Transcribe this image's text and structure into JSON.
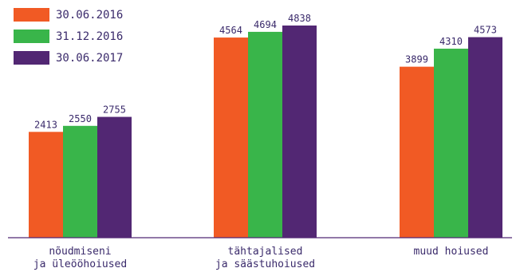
{
  "chart_data": {
    "type": "bar",
    "categories": [
      [
        "nõudmiseni",
        "ja üleööhoiused"
      ],
      [
        "tähtajalised",
        "ja säästuhoiused"
      ],
      [
        "muud hoiused"
      ]
    ],
    "series": [
      {
        "name": "30.06.2016",
        "color": "#f15a24",
        "values": [
          2413,
          4564,
          3899
        ]
      },
      {
        "name": "31.12.2016",
        "color": "#39b54a",
        "values": [
          2550,
          4694,
          4310
        ]
      },
      {
        "name": "30.06.2017",
        "color": "#522773",
        "values": [
          2755,
          4838,
          4573
        ]
      }
    ],
    "ylim": [
      0,
      5000
    ],
    "grid": false,
    "legend_position": "top-left",
    "axis_color": "#522773",
    "text_color": "#3a2a6b"
  }
}
